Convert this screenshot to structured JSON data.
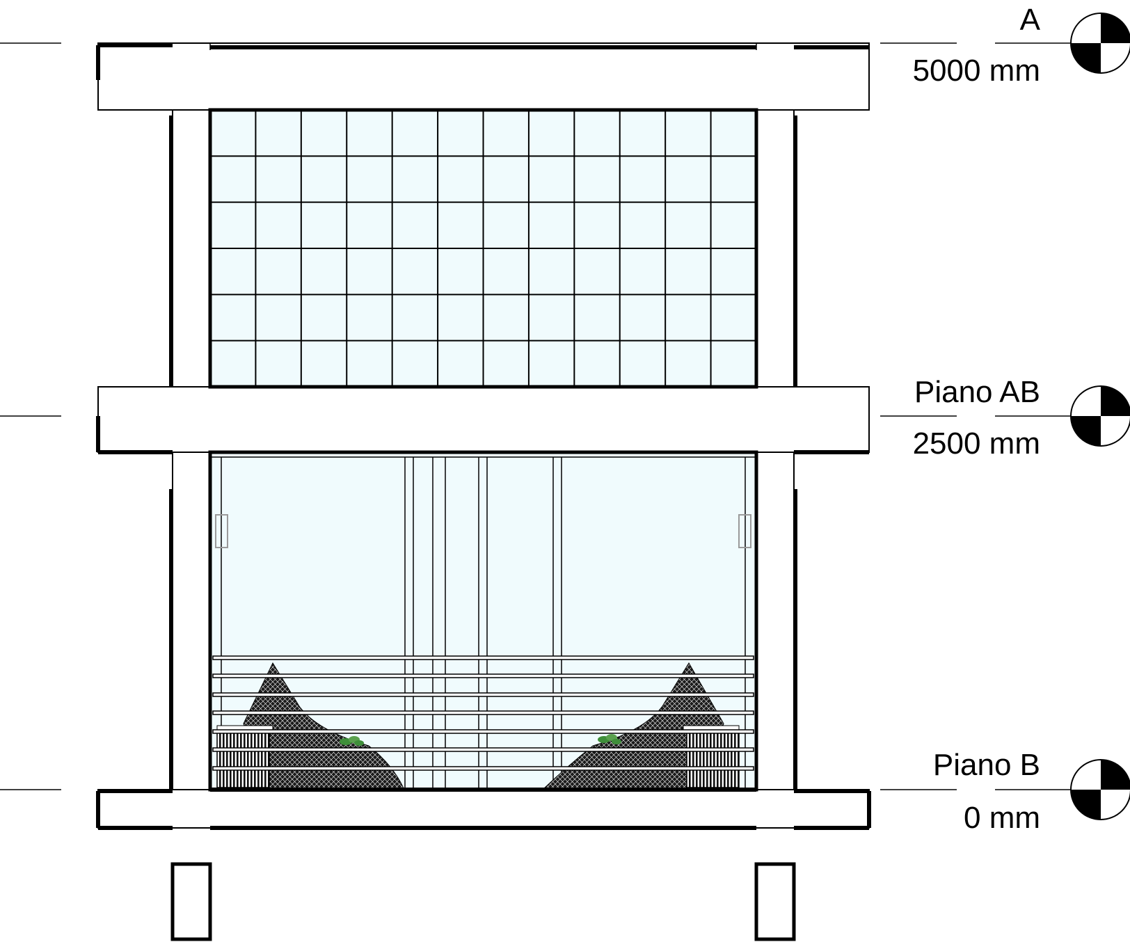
{
  "colors": {
    "glass": "#f0fbfd",
    "line": "#000000",
    "plant": "#3f8f3a",
    "handle": "#9a9a9a"
  },
  "levels": [
    {
      "name": "A",
      "elevation": "5000 mm"
    },
    {
      "name": "Piano AB",
      "elevation": "2500 mm"
    },
    {
      "name": "Piano B",
      "elevation": "0 mm"
    }
  ],
  "icons": {
    "level_marker": "level-datum-icon"
  }
}
